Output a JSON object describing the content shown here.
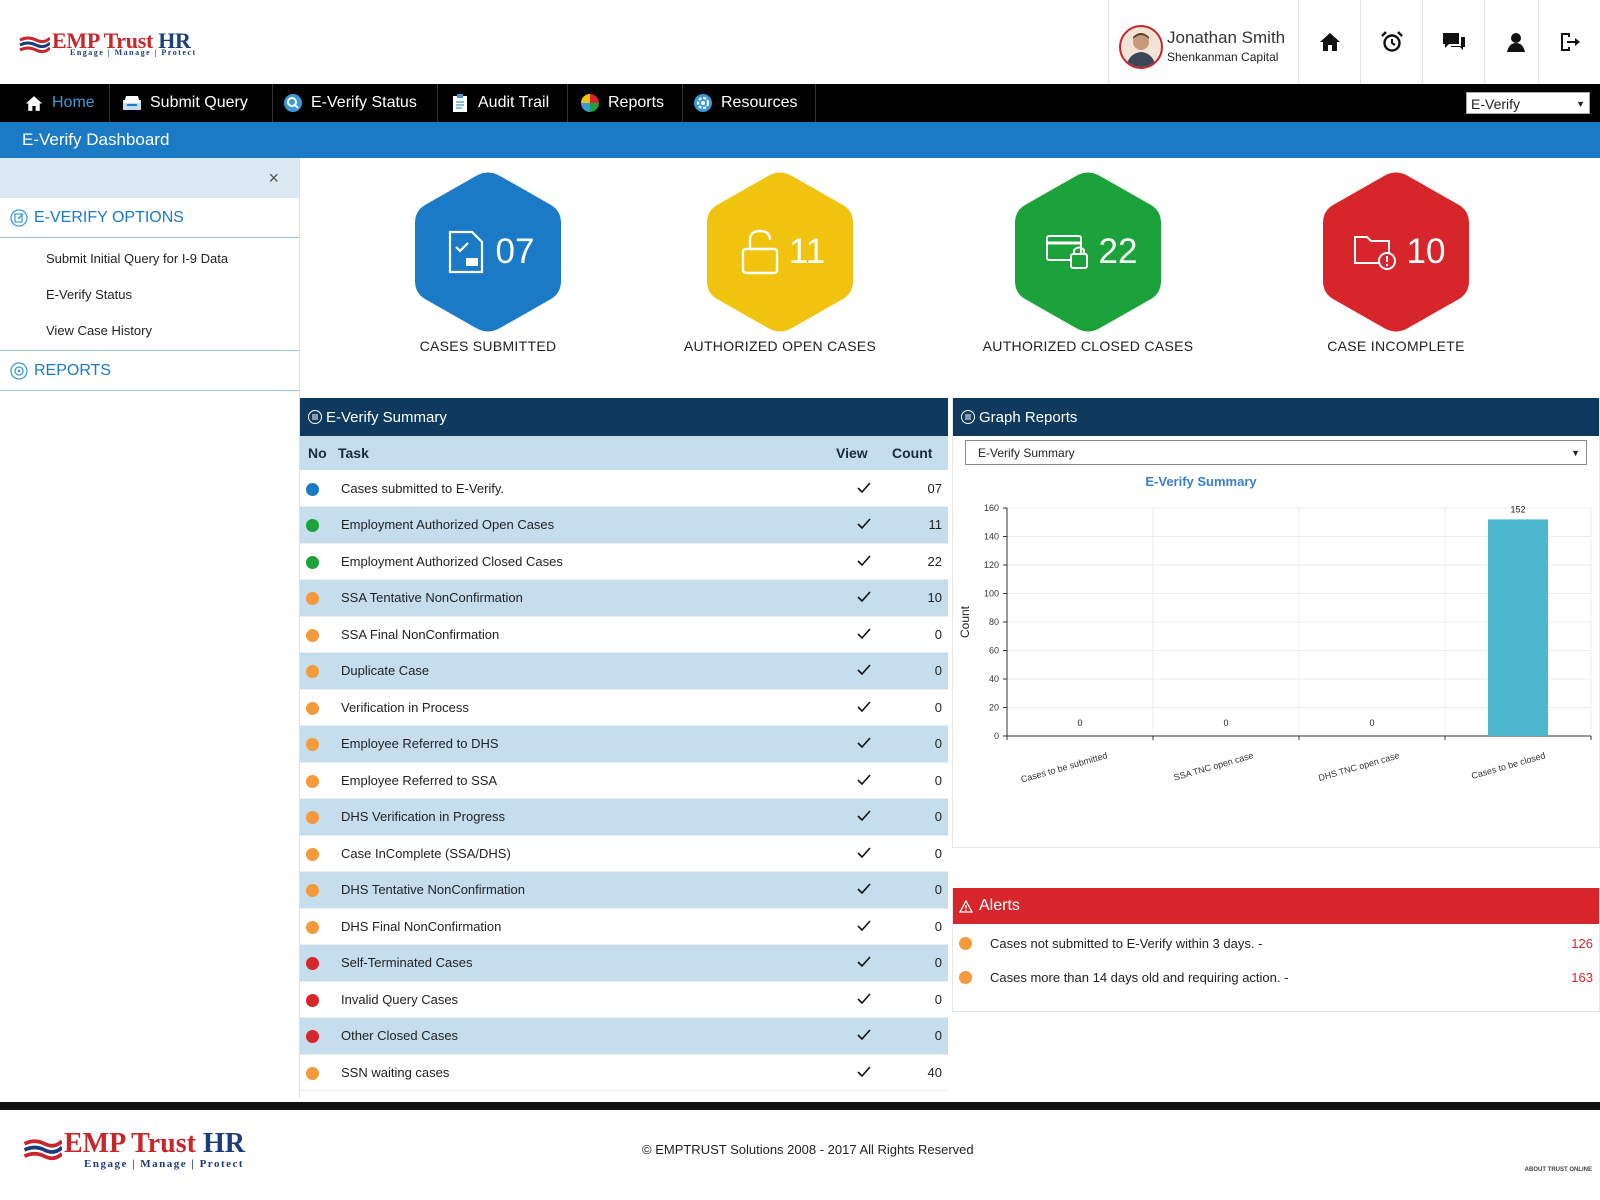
{
  "brand": {
    "name": "EMP Trust HR",
    "tagline": "Engage | Manage | Protect"
  },
  "user": {
    "name": "Jonathan Smith",
    "company": "Shenkanman Capital"
  },
  "header_icons": [
    "home-icon",
    "alarm-clock-icon",
    "chat-icon",
    "user-icon",
    "logout-icon"
  ],
  "nav": {
    "items": [
      {
        "label": "Home",
        "icon": "home-icon",
        "active": true
      },
      {
        "label": "Submit Query",
        "icon": "inbox-icon"
      },
      {
        "label": "E-Verify Status",
        "icon": "search-icon"
      },
      {
        "label": "Audit Trail",
        "icon": "clipboard-icon"
      },
      {
        "label": "Reports",
        "icon": "pie-chart-icon"
      },
      {
        "label": "Resources",
        "icon": "gear-icon"
      }
    ],
    "module_select": "E-Verify"
  },
  "page_title": "E-Verify Dashboard",
  "sidebar": {
    "close": "×",
    "sections": [
      {
        "title": "E-VERIFY OPTIONS",
        "links": [
          "Submit Initial Query for I-9 Data",
          "E-Verify Status",
          "View Case History"
        ]
      },
      {
        "title": "REPORTS",
        "links": []
      }
    ]
  },
  "stats": [
    {
      "value": "07",
      "label": "CASES SUBMITTED",
      "color": "#1a7ac6",
      "icon": "document-check-icon"
    },
    {
      "value": "11",
      "label": "AUTHORIZED OPEN CASES",
      "color": "#f0c30f",
      "icon": "unlock-icon"
    },
    {
      "value": "22",
      "label": "AUTHORIZED CLOSED CASES",
      "color": "#1ba23a",
      "icon": "card-lock-icon"
    },
    {
      "value": "10",
      "label": "CASE INCOMPLETE",
      "color": "#d6262b",
      "icon": "folder-alert-icon"
    }
  ],
  "summary": {
    "title": "E-Verify Summary",
    "columns": {
      "no": "No",
      "task": "Task",
      "view": "View",
      "count": "Count"
    },
    "rows": [
      {
        "task": "Cases submitted to E-Verify.",
        "count": "07",
        "color": "#1a7ac6"
      },
      {
        "task": "Employment Authorized Open Cases",
        "count": "11",
        "color": "#1ba23a"
      },
      {
        "task": "Employment Authorized Closed Cases",
        "count": "22",
        "color": "#1ba23a"
      },
      {
        "task": "SSA Tentative NonConfirmation",
        "count": "10",
        "color": "#f59a3a"
      },
      {
        "task": "SSA Final NonConfirmation",
        "count": "0",
        "color": "#f59a3a"
      },
      {
        "task": "Duplicate Case",
        "count": "0",
        "color": "#f59a3a"
      },
      {
        "task": "Verification in Process",
        "count": "0",
        "color": "#f59a3a"
      },
      {
        "task": "Employee Referred to DHS",
        "count": "0",
        "color": "#f59a3a"
      },
      {
        "task": "Employee Referred to SSA",
        "count": "0",
        "color": "#f59a3a"
      },
      {
        "task": "DHS Verification in Progress",
        "count": "0",
        "color": "#f59a3a"
      },
      {
        "task": "Case InComplete (SSA/DHS)",
        "count": "0",
        "color": "#f59a3a"
      },
      {
        "task": "DHS Tentative NonConfirmation",
        "count": "0",
        "color": "#f59a3a"
      },
      {
        "task": "DHS Final NonConfirmation",
        "count": "0",
        "color": "#f59a3a"
      },
      {
        "task": "Self-Terminated Cases",
        "count": "0",
        "color": "#d6262b"
      },
      {
        "task": "Invalid Query Cases",
        "count": "0",
        "color": "#d6262b"
      },
      {
        "task": "Other Closed Cases",
        "count": "0",
        "color": "#d6262b"
      },
      {
        "task": "SSN waiting cases",
        "count": "40",
        "color": "#f59a3a"
      }
    ]
  },
  "graph": {
    "title": "Graph Reports",
    "select": "E-Verify Summary"
  },
  "chart_data": {
    "type": "bar",
    "title": "E-Verify Summary",
    "ylabel": "Count",
    "xlabel": "",
    "categories": [
      "Cases to be submitted",
      "SSA TNC open case",
      "DHS TNC open case",
      "Cases to be closed"
    ],
    "values": [
      0,
      0,
      0,
      152
    ],
    "ylim": [
      0,
      160
    ],
    "yticks": [
      0,
      20,
      40,
      60,
      80,
      100,
      120,
      140,
      160
    ],
    "grid": true,
    "bar_color": "#4bb8cf"
  },
  "alerts": {
    "title": "Alerts",
    "items": [
      {
        "text": "Cases not submitted to E-Verify within 3 days. -",
        "count": "126"
      },
      {
        "text": "Cases more than 14 days old and requiring action. -",
        "count": "163"
      }
    ]
  },
  "footer": {
    "copyright": "© EMPTRUST Solutions 2008 - 2017 All Rights Reserved",
    "about": "ABOUT TRUST ONLINE"
  }
}
